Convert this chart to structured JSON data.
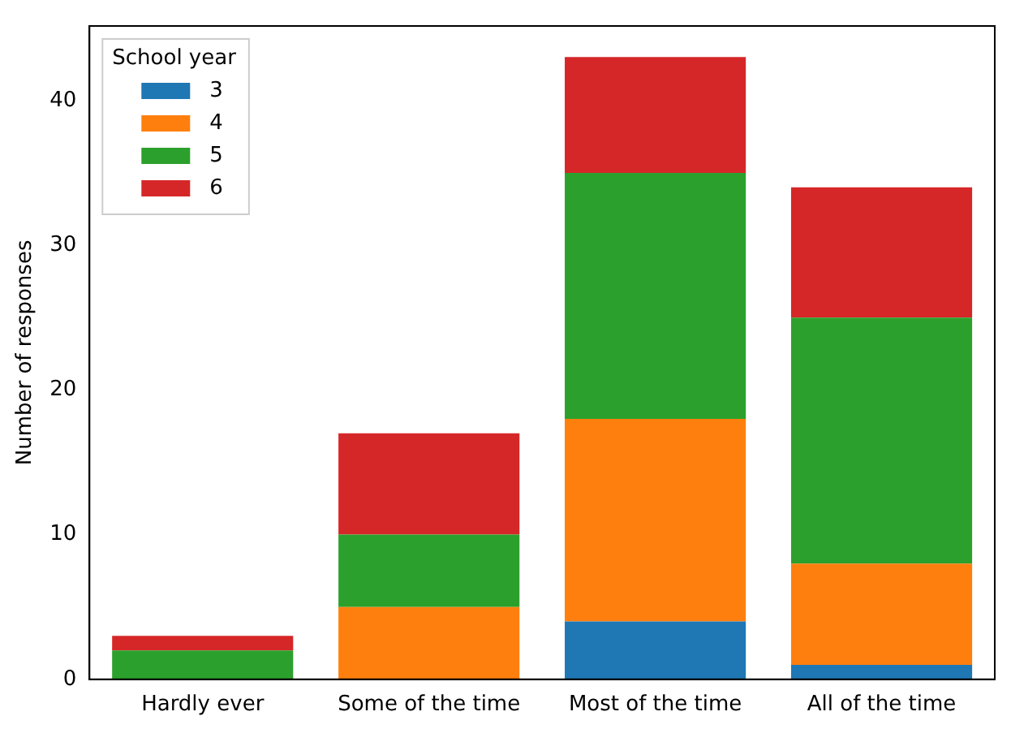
{
  "chart_data": {
    "type": "bar",
    "stacked": true,
    "ylabel": "Number of responses",
    "legend_title": "School year",
    "legend": "top left",
    "grid": false,
    "categories": [
      "Hardly ever",
      "Some of the time",
      "Most of the time",
      "All of the time"
    ],
    "ylim": [
      0,
      45.15
    ],
    "yticks": [
      0,
      10,
      20,
      30,
      40
    ],
    "series": [
      {
        "name": "3",
        "color": "#1f77b4",
        "values": [
          0,
          0,
          4,
          1
        ]
      },
      {
        "name": "4",
        "color": "#ff7f0e",
        "values": [
          0,
          5,
          14,
          7
        ]
      },
      {
        "name": "5",
        "color": "#2ca02c",
        "values": [
          2,
          5,
          17,
          17
        ]
      },
      {
        "name": "6",
        "color": "#d62728",
        "values": [
          1,
          7,
          8,
          9
        ]
      }
    ]
  }
}
